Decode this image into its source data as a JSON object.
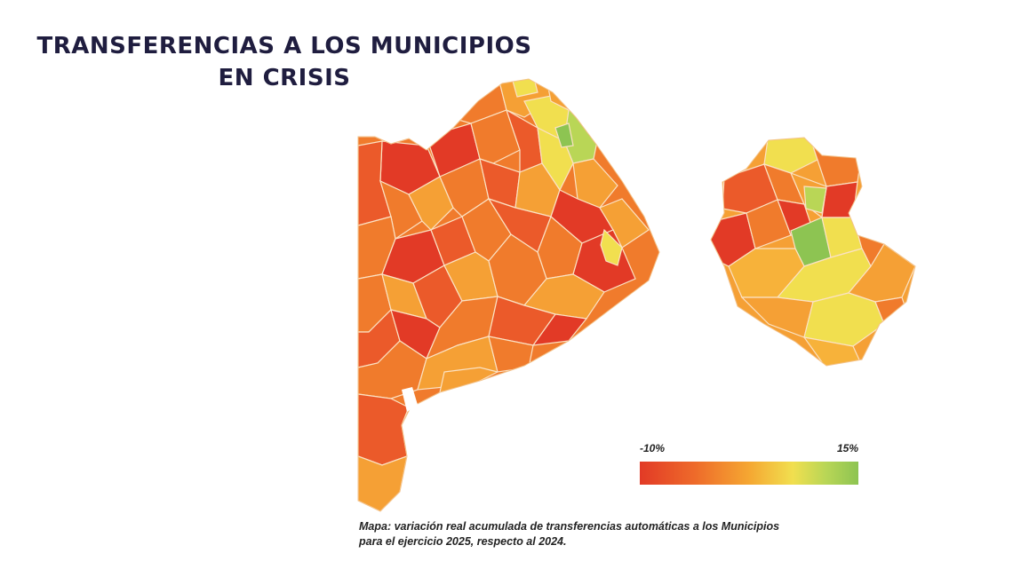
{
  "title": {
    "line1": "TRANSFERENCIAS A LOS MUNICIPIOS",
    "line2": "EN CRISIS"
  },
  "legend": {
    "min_label": "-10%",
    "max_label": "15%",
    "colors": [
      "#e23a26",
      "#ee6a2a",
      "#f5a732",
      "#f1df4f",
      "#b9d656",
      "#8dc452"
    ]
  },
  "caption": {
    "line1": "Mapa: variación real acumulada de transferencias automáticas a los Municipios",
    "line2": "para el ejercicio 2025, respecto al 2024."
  },
  "map": {
    "palette": {
      "deep_red": "#e23a26",
      "red_orange": "#eb5a2a",
      "orange": "#f07b2c",
      "light_orange": "#f5a035",
      "amber": "#f7b23a",
      "yellow": "#f1df4f",
      "green": "#8dc452"
    }
  }
}
